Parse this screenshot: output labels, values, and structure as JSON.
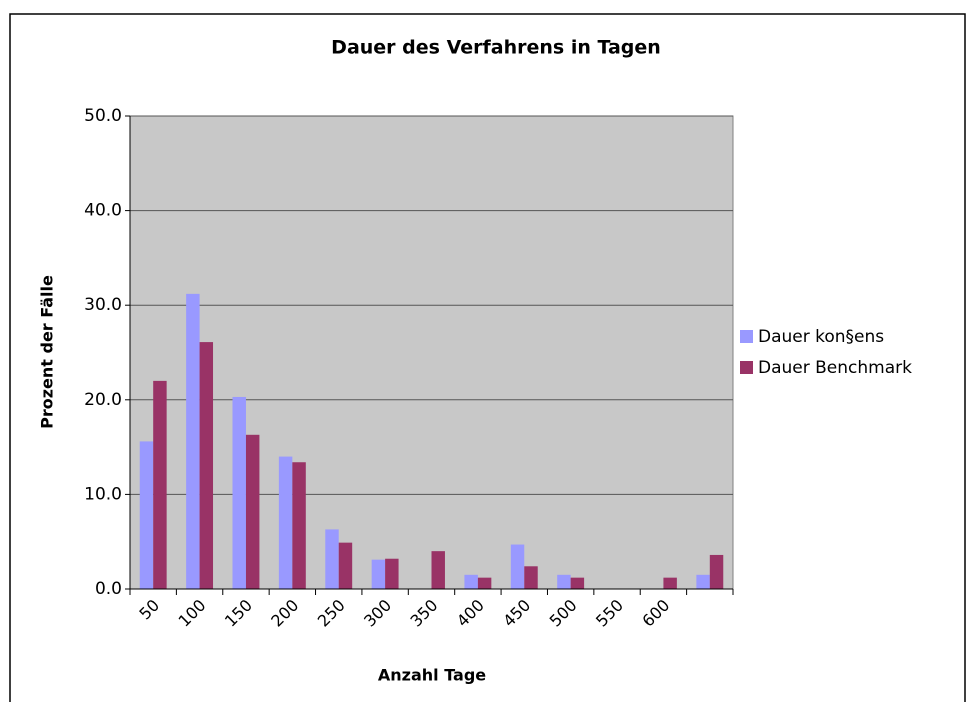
{
  "chart_data": {
    "type": "bar",
    "title": "Dauer des Verfahrens in Tagen",
    "x_label": "Anzahl Tage",
    "y_label": "Prozent der Fälle",
    "categories": [
      "50",
      "100",
      "150",
      "200",
      "250",
      "300",
      "350",
      "400",
      "450",
      "500",
      "550",
      "600",
      null
    ],
    "series": [
      {
        "name": "Dauer kon§ens",
        "color": "#9999ff",
        "values": [
          15.6,
          31.2,
          20.3,
          14.0,
          6.3,
          3.1,
          0,
          1.5,
          4.7,
          1.5,
          0,
          0,
          1.5
        ]
      },
      {
        "name": "Dauer Benchmark",
        "color": "#993366",
        "values": [
          22.0,
          26.1,
          16.3,
          13.4,
          4.9,
          3.2,
          4.0,
          1.2,
          2.4,
          1.2,
          0,
          1.2,
          3.6
        ]
      }
    ],
    "ylim": [
      0,
      50
    ],
    "yticks": [
      {
        "value": 0,
        "label": "0.0"
      },
      {
        "value": 10,
        "label": "10.0"
      },
      {
        "value": 20,
        "label": "20.0"
      },
      {
        "value": 30,
        "label": "30.0"
      },
      {
        "value": 40,
        "label": "40.0"
      },
      {
        "value": 50,
        "label": "50.0"
      }
    ],
    "grid": true,
    "legend": "right"
  }
}
